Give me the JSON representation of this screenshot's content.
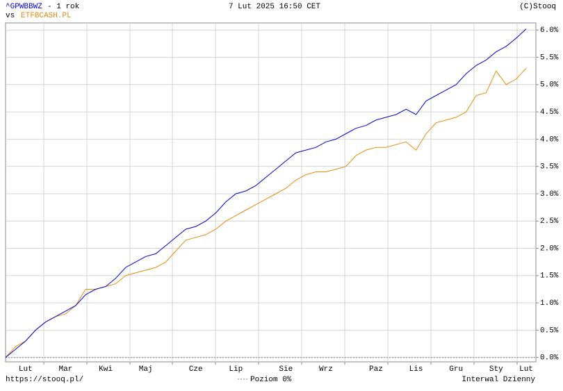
{
  "chart_data": {
    "type": "line",
    "header": {
      "symbol": "^GPWBBWZ",
      "period": "- 1 rok",
      "vs": "vs",
      "compare": "ETFBCASH.PL",
      "date": "7 Lut 2025 16:50 CET",
      "copyright": "(C)Stooq"
    },
    "footer": {
      "url": "https://stooq.pl/",
      "zero_level": "Poziom 0%",
      "interval": "Interwal Dzienny"
    },
    "categories": [
      null,
      null,
      "Lut",
      null,
      null,
      null,
      "Mar",
      null,
      null,
      null,
      "Kwi",
      null,
      null,
      null,
      "Maj",
      null,
      null,
      null,
      null,
      "Cze",
      null,
      null,
      null,
      "Lip",
      null,
      null,
      null,
      null,
      "Sie",
      null,
      null,
      null,
      "Wrz",
      null,
      null,
      null,
      null,
      "Paz",
      null,
      null,
      null,
      "Lis",
      null,
      null,
      null,
      "Gru",
      null,
      null,
      null,
      "Sty",
      null,
      null,
      "Lut"
    ],
    "series": [
      {
        "name": "^GPWBBWZ",
        "color": "#0000cc",
        "values": [
          0,
          0.15,
          0.3,
          0.5,
          0.65,
          0.75,
          0.85,
          0.95,
          1.15,
          1.25,
          1.3,
          1.45,
          1.65,
          1.75,
          1.85,
          1.9,
          2.05,
          2.2,
          2.35,
          2.4,
          2.5,
          2.65,
          2.85,
          3.0,
          3.05,
          3.15,
          3.3,
          3.45,
          3.6,
          3.75,
          3.8,
          3.85,
          3.95,
          4.0,
          4.1,
          4.2,
          4.25,
          4.35,
          4.4,
          4.45,
          4.55,
          4.45,
          4.7,
          4.8,
          4.9,
          5.0,
          5.2,
          5.35,
          5.45,
          5.6,
          5.7,
          5.85,
          6.02
        ]
      },
      {
        "name": "ETFBCASH.PL",
        "color": "#e8890c",
        "values": [
          0,
          0.2,
          0.3,
          0.5,
          0.65,
          0.75,
          0.8,
          0.95,
          1.25,
          1.25,
          1.3,
          1.35,
          1.5,
          1.55,
          1.6,
          1.65,
          1.75,
          1.95,
          2.15,
          2.2,
          2.25,
          2.35,
          2.5,
          2.6,
          2.7,
          2.8,
          2.9,
          3.0,
          3.1,
          3.25,
          3.35,
          3.4,
          3.4,
          3.45,
          3.5,
          3.7,
          3.8,
          3.85,
          3.85,
          3.9,
          3.95,
          3.8,
          4.1,
          4.3,
          4.35,
          4.4,
          4.5,
          4.8,
          4.85,
          5.25,
          5.0,
          5.1,
          5.3
        ]
      }
    ],
    "ylim": [
      -0.08,
      6.13
    ],
    "yticks": [
      {
        "value": 0,
        "label": "0.0%"
      },
      {
        "value": 0.5,
        "label": "0.5%"
      },
      {
        "value": 1,
        "label": "1.0%"
      },
      {
        "value": 1.5,
        "label": "1.5%"
      },
      {
        "value": 2,
        "label": "2.0%"
      },
      {
        "value": 2.5,
        "label": "2.5%"
      },
      {
        "value": 3,
        "label": "3.0%"
      },
      {
        "value": 3.5,
        "label": "3.5%"
      },
      {
        "value": 4,
        "label": "4.0%"
      },
      {
        "value": 4.5,
        "label": "4.5%"
      },
      {
        "value": 5,
        "label": "5.0%"
      },
      {
        "value": 5.5,
        "label": "5.5%"
      },
      {
        "value": 6,
        "label": "6.0%"
      }
    ],
    "grid": true
  }
}
